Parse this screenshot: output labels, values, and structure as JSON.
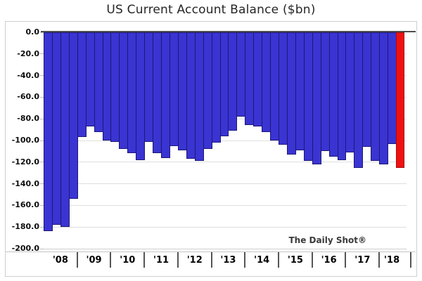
{
  "title": "US Current Account Balance ($bn)",
  "source": "The Daily Shot®",
  "y_axis": {
    "labels": [
      "0.0",
      "-20.0",
      "-40.0",
      "-60.0",
      "-80.0",
      "-100.0",
      "-120.0",
      "-140.0",
      "-160.0",
      "-180.0",
      "-200.0"
    ]
  },
  "x_axis": {
    "labels": [
      "'08",
      "'09",
      "'10",
      "'11",
      "'12",
      "'13",
      "'14",
      "'15",
      "'16",
      "'17",
      "'18"
    ]
  },
  "colors": {
    "bar": "#3a34d2",
    "bar_border": "#1d1878",
    "highlight_bar": "#ee1111",
    "highlight_border": "#a50d0d",
    "zero_line": "#4d4d4d",
    "gridline": "#dedede"
  },
  "chart_data": {
    "type": "bar",
    "title": "US Current Account Balance ($bn)",
    "ylabel": "",
    "xlabel": "",
    "unit": "$bn",
    "ylim": [
      -200,
      0
    ],
    "grid": true,
    "bars_per_year": 4,
    "x": [
      "2008 Q1",
      "2008 Q2",
      "2008 Q3",
      "2008 Q4",
      "2009 Q1",
      "2009 Q2",
      "2009 Q3",
      "2009 Q4",
      "2010 Q1",
      "2010 Q2",
      "2010 Q3",
      "2010 Q4",
      "2011 Q1",
      "2011 Q2",
      "2011 Q3",
      "2011 Q4",
      "2012 Q1",
      "2012 Q2",
      "2012 Q3",
      "2012 Q4",
      "2013 Q1",
      "2013 Q2",
      "2013 Q3",
      "2013 Q4",
      "2014 Q1",
      "2014 Q2",
      "2014 Q3",
      "2014 Q4",
      "2015 Q1",
      "2015 Q2",
      "2015 Q3",
      "2015 Q4",
      "2016 Q1",
      "2016 Q2",
      "2016 Q3",
      "2016 Q4",
      "2017 Q1",
      "2017 Q2",
      "2017 Q3",
      "2017 Q4",
      "2018 Q1",
      "2018 Q2",
      "2018 Q3"
    ],
    "values": [
      -184,
      -178,
      -180,
      -154,
      -97,
      -87,
      -92,
      -100,
      -101,
      -108,
      -112,
      -118,
      -101,
      -112,
      -116,
      -105,
      -109,
      -117,
      -119,
      -108,
      -102,
      -96,
      -91,
      -78,
      -86,
      -87,
      -92,
      -100,
      -104,
      -113,
      -109,
      -119,
      -122,
      -110,
      -115,
      -118,
      -111,
      -125,
      -106,
      -119,
      -122,
      -103,
      -125
    ],
    "highlight_index": 42
  }
}
